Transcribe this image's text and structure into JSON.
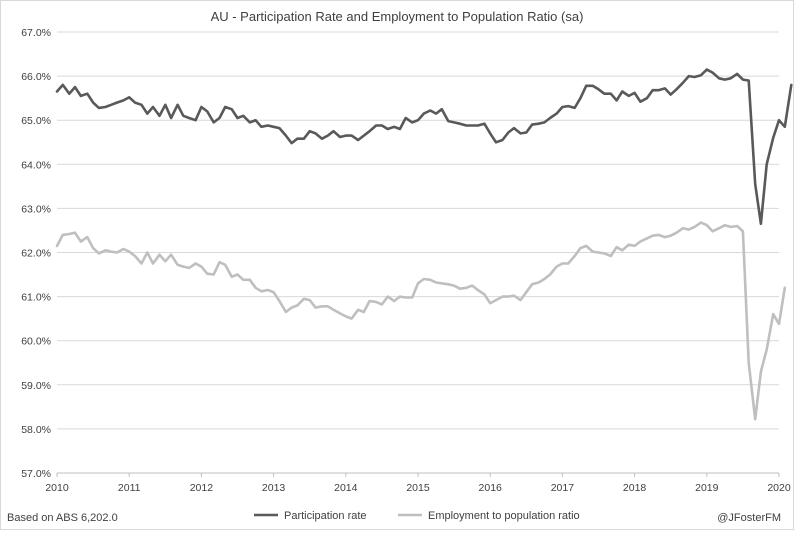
{
  "chart_data": {
    "type": "line",
    "title": "AU - Participation Rate and Employment to Population Ratio (sa)",
    "x_tick_labels": [
      "2010",
      "2011",
      "2012",
      "2013",
      "2014",
      "2015",
      "2016",
      "2017",
      "2018",
      "2019",
      "2020"
    ],
    "y_tick_labels": [
      "57.0%",
      "58.0%",
      "59.0%",
      "60.0%",
      "61.0%",
      "62.0%",
      "63.0%",
      "64.0%",
      "65.0%",
      "66.0%",
      "67.0%"
    ],
    "ylim": [
      57.0,
      67.0
    ],
    "xlim": [
      2010,
      2020
    ],
    "grid": true,
    "legend_position": "bottom",
    "source_note": "Based on ABS 6,202.0",
    "author_note": "@JFosterFM",
    "colors": {
      "grid": "#d9d9d9",
      "axis": "#bfbfbf"
    },
    "series": [
      {
        "name": "Participation rate",
        "color": "#595959",
        "points": [
          [
            2010.0,
            65.65
          ],
          [
            2010.08,
            65.8
          ],
          [
            2010.17,
            65.6
          ],
          [
            2010.25,
            65.75
          ],
          [
            2010.33,
            65.55
          ],
          [
            2010.42,
            65.6
          ],
          [
            2010.5,
            65.4
          ],
          [
            2010.58,
            65.28
          ],
          [
            2010.67,
            65.3
          ],
          [
            2010.75,
            65.35
          ],
          [
            2010.83,
            65.4
          ],
          [
            2010.92,
            65.45
          ],
          [
            2011.0,
            65.52
          ],
          [
            2011.08,
            65.4
          ],
          [
            2011.17,
            65.35
          ],
          [
            2011.25,
            65.15
          ],
          [
            2011.33,
            65.3
          ],
          [
            2011.42,
            65.1
          ],
          [
            2011.5,
            65.35
          ],
          [
            2011.58,
            65.05
          ],
          [
            2011.67,
            65.35
          ],
          [
            2011.75,
            65.1
          ],
          [
            2011.83,
            65.05
          ],
          [
            2011.92,
            65.0
          ],
          [
            2012.0,
            65.3
          ],
          [
            2012.08,
            65.2
          ],
          [
            2012.17,
            64.95
          ],
          [
            2012.25,
            65.05
          ],
          [
            2012.33,
            65.3
          ],
          [
            2012.42,
            65.25
          ],
          [
            2012.5,
            65.05
          ],
          [
            2012.58,
            65.1
          ],
          [
            2012.67,
            64.95
          ],
          [
            2012.75,
            65.0
          ],
          [
            2012.83,
            64.85
          ],
          [
            2012.92,
            64.88
          ],
          [
            2013.0,
            64.85
          ],
          [
            2013.08,
            64.82
          ],
          [
            2013.17,
            64.65
          ],
          [
            2013.25,
            64.48
          ],
          [
            2013.33,
            64.58
          ],
          [
            2013.42,
            64.58
          ],
          [
            2013.5,
            64.75
          ],
          [
            2013.58,
            64.7
          ],
          [
            2013.67,
            64.58
          ],
          [
            2013.75,
            64.65
          ],
          [
            2013.83,
            64.75
          ],
          [
            2013.92,
            64.62
          ],
          [
            2014.0,
            64.65
          ],
          [
            2014.08,
            64.65
          ],
          [
            2014.17,
            64.55
          ],
          [
            2014.25,
            64.65
          ],
          [
            2014.33,
            64.75
          ],
          [
            2014.42,
            64.88
          ],
          [
            2014.5,
            64.88
          ],
          [
            2014.58,
            64.8
          ],
          [
            2014.67,
            64.85
          ],
          [
            2014.75,
            64.8
          ],
          [
            2014.83,
            65.05
          ],
          [
            2014.92,
            64.95
          ],
          [
            2015.0,
            65.0
          ],
          [
            2015.08,
            65.15
          ],
          [
            2015.17,
            65.22
          ],
          [
            2015.25,
            65.15
          ],
          [
            2015.33,
            65.25
          ],
          [
            2015.42,
            64.98
          ],
          [
            2015.5,
            64.95
          ],
          [
            2015.58,
            64.92
          ],
          [
            2015.67,
            64.88
          ],
          [
            2015.75,
            64.88
          ],
          [
            2015.83,
            64.88
          ],
          [
            2015.92,
            64.92
          ],
          [
            2016.0,
            64.7
          ],
          [
            2016.08,
            64.5
          ],
          [
            2016.17,
            64.55
          ],
          [
            2016.25,
            64.72
          ],
          [
            2016.33,
            64.82
          ],
          [
            2016.42,
            64.7
          ],
          [
            2016.5,
            64.72
          ],
          [
            2016.58,
            64.9
          ],
          [
            2016.67,
            64.92
          ],
          [
            2016.75,
            64.95
          ],
          [
            2016.83,
            65.05
          ],
          [
            2016.92,
            65.15
          ],
          [
            2017.0,
            65.3
          ],
          [
            2017.08,
            65.32
          ],
          [
            2017.17,
            65.28
          ],
          [
            2017.25,
            65.5
          ],
          [
            2017.33,
            65.78
          ],
          [
            2017.42,
            65.78
          ],
          [
            2017.5,
            65.7
          ],
          [
            2017.58,
            65.6
          ],
          [
            2017.67,
            65.6
          ],
          [
            2017.75,
            65.45
          ],
          [
            2017.83,
            65.65
          ],
          [
            2017.92,
            65.55
          ],
          [
            2018.0,
            65.62
          ],
          [
            2018.08,
            65.42
          ],
          [
            2018.17,
            65.5
          ],
          [
            2018.25,
            65.68
          ],
          [
            2018.33,
            65.68
          ],
          [
            2018.42,
            65.72
          ],
          [
            2018.5,
            65.58
          ],
          [
            2018.58,
            65.7
          ],
          [
            2018.67,
            65.85
          ],
          [
            2018.75,
            66.0
          ],
          [
            2018.83,
            65.98
          ],
          [
            2018.92,
            66.02
          ],
          [
            2019.0,
            66.15
          ],
          [
            2019.08,
            66.08
          ],
          [
            2019.17,
            65.95
          ],
          [
            2019.25,
            65.92
          ],
          [
            2019.33,
            65.95
          ],
          [
            2019.42,
            66.05
          ],
          [
            2019.5,
            65.92
          ],
          [
            2019.58,
            65.9
          ],
          [
            2019.67,
            63.55
          ],
          [
            2019.75,
            62.65
          ],
          [
            2019.83,
            64.0
          ],
          [
            2019.92,
            64.6
          ],
          [
            2020.0,
            65.0
          ],
          [
            2020.08,
            64.85
          ],
          [
            2020.17,
            65.8
          ]
        ]
      },
      {
        "name": "Employment to population ratio",
        "color": "#bfbfbf",
        "points": [
          [
            2010.0,
            62.15
          ],
          [
            2010.08,
            62.4
          ],
          [
            2010.17,
            62.42
          ],
          [
            2010.25,
            62.45
          ],
          [
            2010.33,
            62.25
          ],
          [
            2010.42,
            62.35
          ],
          [
            2010.5,
            62.1
          ],
          [
            2010.58,
            61.98
          ],
          [
            2010.67,
            62.05
          ],
          [
            2010.75,
            62.02
          ],
          [
            2010.83,
            62.0
          ],
          [
            2010.92,
            62.08
          ],
          [
            2011.0,
            62.02
          ],
          [
            2011.08,
            61.92
          ],
          [
            2011.17,
            61.75
          ],
          [
            2011.25,
            62.0
          ],
          [
            2011.33,
            61.75
          ],
          [
            2011.42,
            61.95
          ],
          [
            2011.5,
            61.8
          ],
          [
            2011.58,
            61.95
          ],
          [
            2011.67,
            61.72
          ],
          [
            2011.75,
            61.68
          ],
          [
            2011.83,
            61.65
          ],
          [
            2011.92,
            61.75
          ],
          [
            2012.0,
            61.68
          ],
          [
            2012.08,
            61.52
          ],
          [
            2012.17,
            61.5
          ],
          [
            2012.25,
            61.78
          ],
          [
            2012.33,
            61.72
          ],
          [
            2012.42,
            61.45
          ],
          [
            2012.5,
            61.5
          ],
          [
            2012.58,
            61.38
          ],
          [
            2012.67,
            61.38
          ],
          [
            2012.75,
            61.2
          ],
          [
            2012.83,
            61.12
          ],
          [
            2012.92,
            61.15
          ],
          [
            2013.0,
            61.1
          ],
          [
            2013.08,
            60.9
          ],
          [
            2013.17,
            60.65
          ],
          [
            2013.25,
            60.75
          ],
          [
            2013.33,
            60.8
          ],
          [
            2013.42,
            60.95
          ],
          [
            2013.5,
            60.92
          ],
          [
            2013.58,
            60.75
          ],
          [
            2013.67,
            60.78
          ],
          [
            2013.75,
            60.78
          ],
          [
            2013.83,
            60.7
          ],
          [
            2013.92,
            60.62
          ],
          [
            2014.0,
            60.55
          ],
          [
            2014.08,
            60.5
          ],
          [
            2014.17,
            60.7
          ],
          [
            2014.25,
            60.65
          ],
          [
            2014.33,
            60.9
          ],
          [
            2014.42,
            60.88
          ],
          [
            2014.5,
            60.82
          ],
          [
            2014.58,
            61.0
          ],
          [
            2014.67,
            60.9
          ],
          [
            2014.75,
            61.0
          ],
          [
            2014.83,
            60.98
          ],
          [
            2014.92,
            60.98
          ],
          [
            2015.0,
            61.3
          ],
          [
            2015.08,
            61.4
          ],
          [
            2015.17,
            61.38
          ],
          [
            2015.25,
            61.32
          ],
          [
            2015.33,
            61.3
          ],
          [
            2015.42,
            61.28
          ],
          [
            2015.5,
            61.25
          ],
          [
            2015.58,
            61.18
          ],
          [
            2015.67,
            61.2
          ],
          [
            2015.75,
            61.25
          ],
          [
            2015.83,
            61.15
          ],
          [
            2015.92,
            61.05
          ],
          [
            2016.0,
            60.85
          ],
          [
            2016.08,
            60.92
          ],
          [
            2016.17,
            61.0
          ],
          [
            2016.25,
            61.0
          ],
          [
            2016.33,
            61.02
          ],
          [
            2016.42,
            60.92
          ],
          [
            2016.5,
            61.1
          ],
          [
            2016.58,
            61.28
          ],
          [
            2016.67,
            61.32
          ],
          [
            2016.75,
            61.4
          ],
          [
            2016.83,
            61.5
          ],
          [
            2016.92,
            61.68
          ],
          [
            2017.0,
            61.75
          ],
          [
            2017.08,
            61.75
          ],
          [
            2017.17,
            61.92
          ],
          [
            2017.25,
            62.1
          ],
          [
            2017.33,
            62.15
          ],
          [
            2017.42,
            62.02
          ],
          [
            2017.5,
            62.0
          ],
          [
            2017.58,
            61.98
          ],
          [
            2017.67,
            61.92
          ],
          [
            2017.75,
            62.12
          ],
          [
            2017.83,
            62.05
          ],
          [
            2017.92,
            62.18
          ],
          [
            2018.0,
            62.15
          ],
          [
            2018.08,
            62.25
          ],
          [
            2018.17,
            62.32
          ],
          [
            2018.25,
            62.38
          ],
          [
            2018.33,
            62.4
          ],
          [
            2018.42,
            62.35
          ],
          [
            2018.5,
            62.38
          ],
          [
            2018.58,
            62.45
          ],
          [
            2018.67,
            62.55
          ],
          [
            2018.75,
            62.52
          ],
          [
            2018.83,
            62.58
          ],
          [
            2018.92,
            62.68
          ],
          [
            2019.0,
            62.62
          ],
          [
            2019.08,
            62.48
          ],
          [
            2019.17,
            62.55
          ],
          [
            2019.25,
            62.62
          ],
          [
            2019.33,
            62.58
          ],
          [
            2019.42,
            62.6
          ],
          [
            2019.5,
            62.48
          ],
          [
            2019.58,
            59.5
          ],
          [
            2019.67,
            58.22
          ],
          [
            2019.75,
            59.3
          ],
          [
            2019.83,
            59.8
          ],
          [
            2019.92,
            60.6
          ],
          [
            2020.0,
            60.38
          ],
          [
            2020.08,
            61.2
          ]
        ]
      }
    ]
  }
}
